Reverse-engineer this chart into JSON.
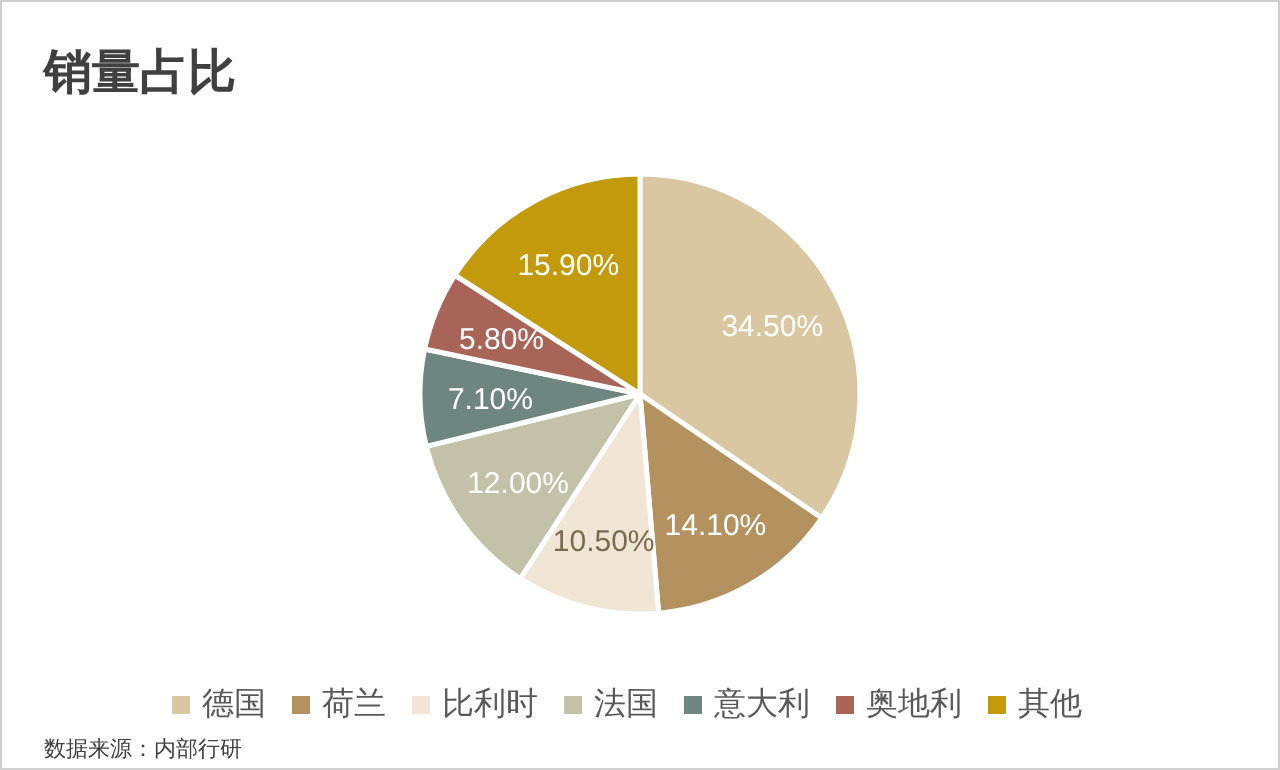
{
  "chart_data": {
    "type": "pie",
    "title": "销量占比",
    "categories": [
      "德国",
      "荷兰",
      "比利时",
      "法国",
      "意大利",
      "奥地利",
      "其他"
    ],
    "values": [
      34.5,
      14.1,
      10.5,
      12.0,
      7.1,
      5.8,
      15.9
    ],
    "value_labels": [
      "34.50%",
      "14.10%",
      "10.50%",
      "12.00%",
      "7.10%",
      "5.80%",
      "15.90%"
    ],
    "colors": [
      "#d9c7a1",
      "#b4925f",
      "#f1e6d5",
      "#c3c1a8",
      "#6f8580",
      "#a96458",
      "#c39a0c"
    ],
    "legend": "bottom",
    "annotations": [
      "数据来源：内部行研"
    ]
  }
}
